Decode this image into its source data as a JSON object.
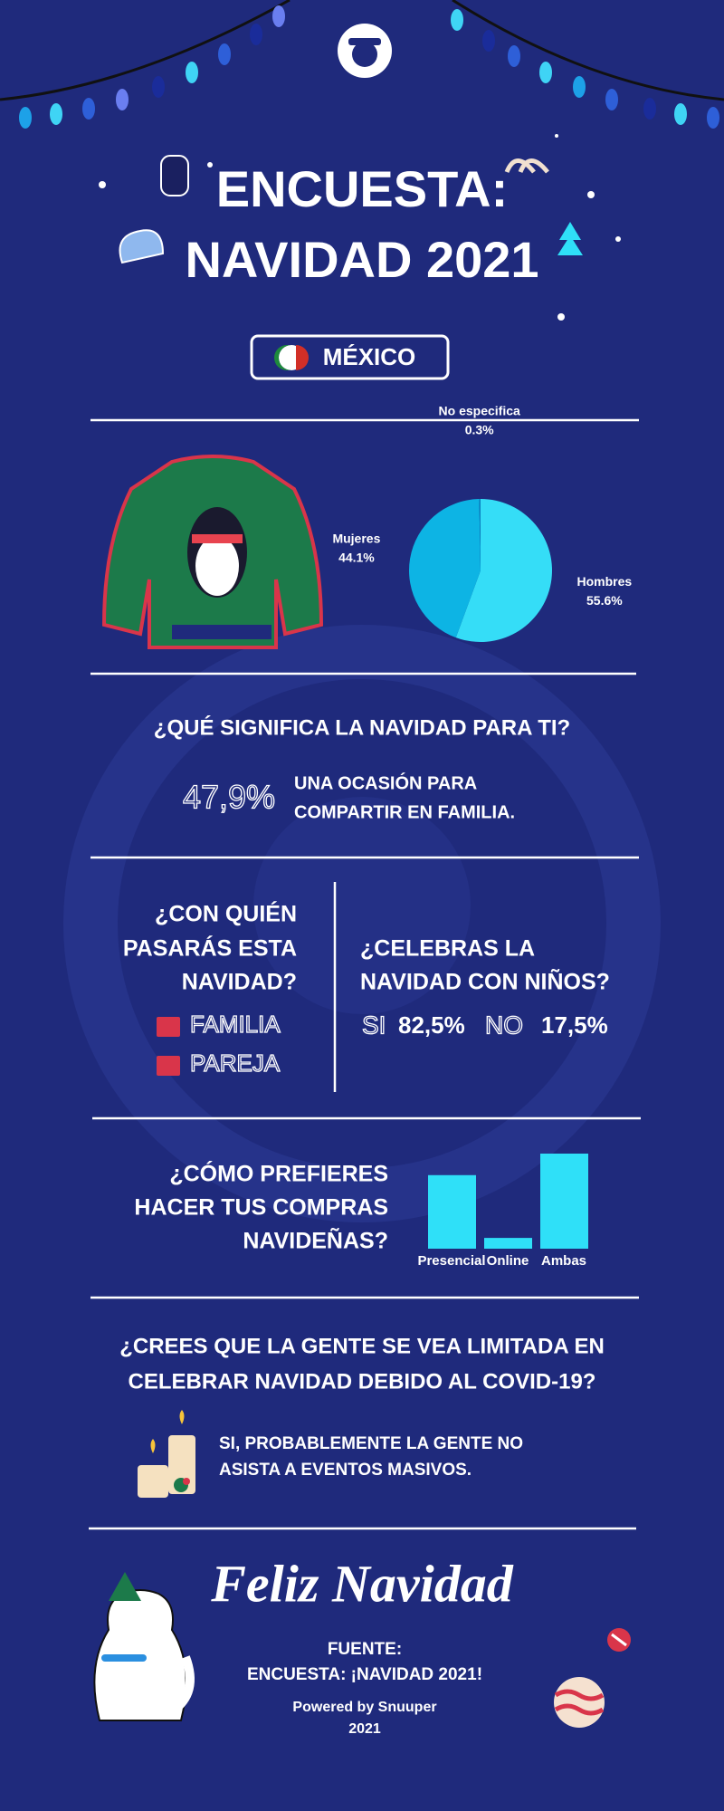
{
  "header": {
    "title_lines": [
      "ENCUESTA:",
      "NAVIDAD 2021"
    ],
    "country": "MÉXICO"
  },
  "chart_data": [
    {
      "type": "pie",
      "categories": [
        "Hombres",
        "Mujeres",
        "No especifica"
      ],
      "values": [
        55.6,
        44.1,
        0.3
      ],
      "value_labels": [
        "55.6%",
        "44.1%",
        "0.3%"
      ],
      "colors": [
        "#35ddf7",
        "#0db4e4",
        "#0a7fc0"
      ]
    },
    {
      "type": "bar",
      "categories": [
        "Presencial",
        "Online",
        "Ambas"
      ],
      "values": [
        41,
        6,
        53
      ],
      "color": "#2fe0f8"
    }
  ],
  "q1": {
    "title": "¿QUÉ SIGNIFICA LA NAVIDAD PARA TI?",
    "percent": "47,9%",
    "answer_lines": [
      "UNA OCASIÓN PARA",
      "COMPARTIR EN FAMILIA."
    ]
  },
  "q2": {
    "title_lines": [
      "¿CON QUIÉN",
      "PASARÁS ESTA",
      "NAVIDAD?"
    ],
    "options": [
      "FAMILIA",
      "PAREJA"
    ]
  },
  "q3": {
    "title_lines": [
      "¿CELEBRAS LA",
      "NAVIDAD CON NIÑOS?"
    ],
    "answers": [
      {
        "label": "SI",
        "value": "82,5%"
      },
      {
        "label": "NO",
        "value": "17,5%"
      }
    ]
  },
  "q4": {
    "title_lines": [
      "¿CÓMO PREFIERES",
      "HACER TUS COMPRAS",
      "NAVIDEÑAS?"
    ]
  },
  "q5": {
    "title_lines": [
      "¿CREES QUE LA GENTE SE VEA LIMITADA EN",
      "CELEBRAR NAVIDAD DEBIDO AL COVID-19?"
    ],
    "answer_lines": [
      "SI, PROBABLEMENTE LA GENTE NO",
      "ASISTA A EVENTOS MASIVOS."
    ]
  },
  "footer": {
    "greeting": "Feliz Navidad",
    "source_label": "FUENTE:",
    "source": "ENCUESTA: ¡NAVIDAD 2021!",
    "powered": "Powered by Snuuper",
    "year": "2021"
  }
}
